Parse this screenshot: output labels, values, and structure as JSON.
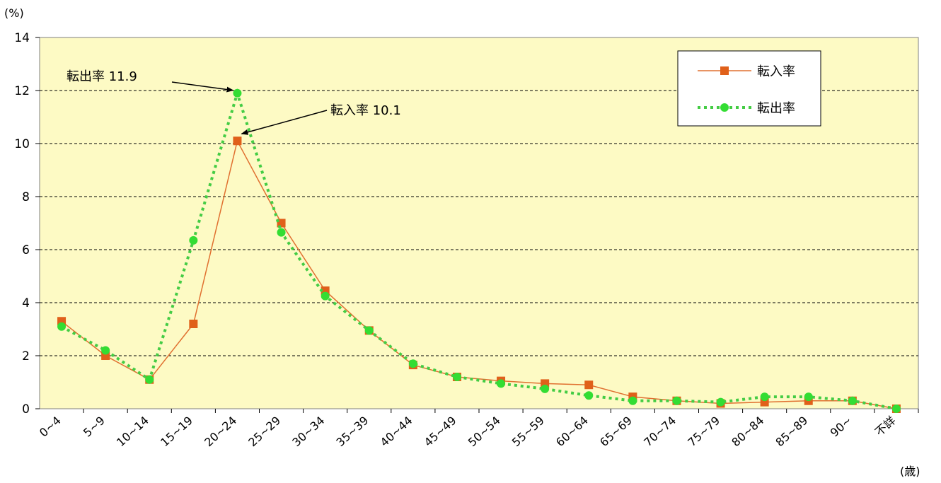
{
  "chart_data": {
    "type": "line",
    "y_unit": "(%)",
    "x_unit": "(歳)",
    "categories": [
      "0~4",
      "5~9",
      "10~14",
      "15~19",
      "20~24",
      "25~29",
      "30~34",
      "35~39",
      "40~44",
      "45~49",
      "50~54",
      "55~59",
      "60~64",
      "65~69",
      "70~74",
      "75~79",
      "80~84",
      "85~89",
      "90~",
      "不詳"
    ],
    "ylim": [
      0,
      14
    ],
    "yticks": [
      0,
      2,
      4,
      6,
      8,
      10,
      12,
      14
    ],
    "grid": true,
    "legend_position": "top-right",
    "series": [
      {
        "name": "転入率",
        "color": "#e0601a",
        "line_color": "#e07030",
        "marker": "square",
        "line_style": "solid",
        "values": [
          3.3,
          2.0,
          1.1,
          3.2,
          10.1,
          7.0,
          4.45,
          2.95,
          1.65,
          1.2,
          1.05,
          0.95,
          0.9,
          0.45,
          0.3,
          0.2,
          0.25,
          0.3,
          0.3,
          0.0
        ]
      },
      {
        "name": "転出率",
        "color": "#33dd33",
        "line_color": "#44cc44",
        "marker": "circle",
        "line_style": "dotted",
        "values": [
          3.1,
          2.2,
          1.1,
          6.35,
          11.9,
          6.65,
          4.25,
          2.95,
          1.7,
          1.2,
          0.95,
          0.75,
          0.5,
          0.3,
          0.3,
          0.25,
          0.45,
          0.45,
          0.3,
          0.0
        ]
      }
    ],
    "annotations": [
      {
        "text": "転出率 11.9",
        "series": 1,
        "index": 4
      },
      {
        "text": "転入率 10.1",
        "series": 0,
        "index": 4
      }
    ]
  }
}
